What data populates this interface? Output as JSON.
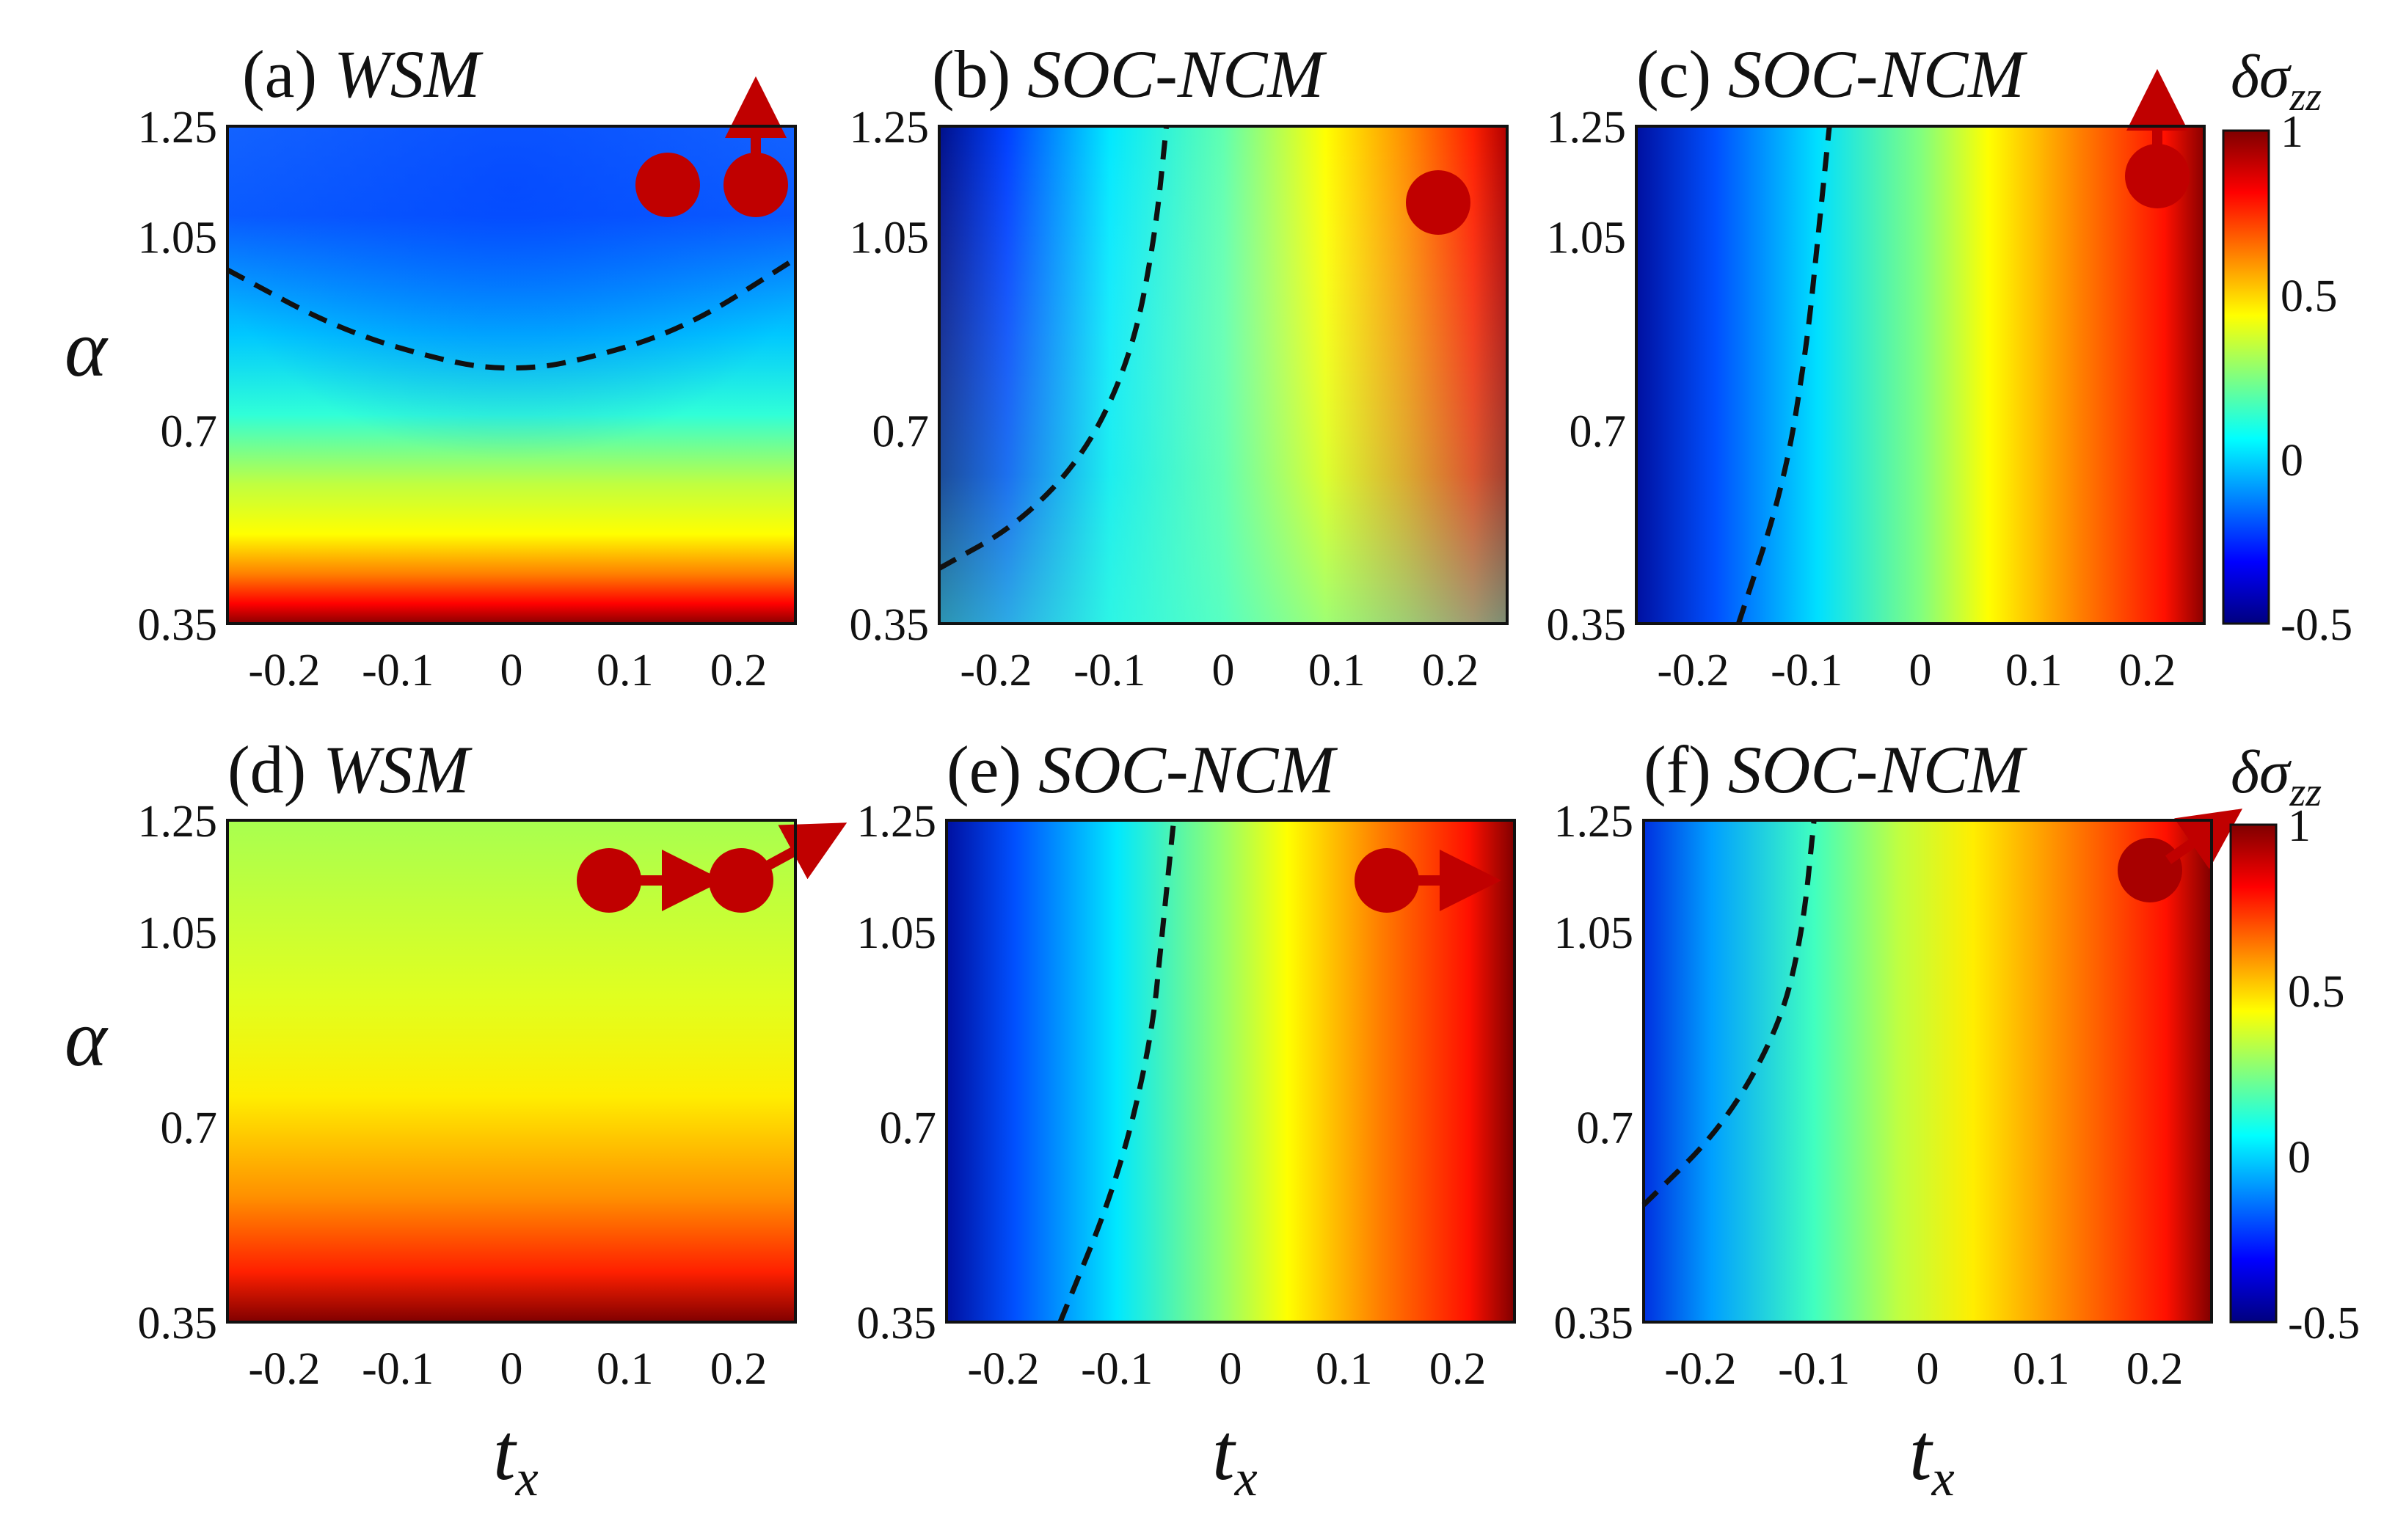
{
  "figure": {
    "y_axis_var": "α",
    "x_axis_var_base": "t",
    "x_axis_var_sub": "x",
    "colorbar_title": "δσ",
    "colorbar_subscript": "zz"
  },
  "chart_data": [
    {
      "id": "a",
      "type": "heatmap",
      "label": "(a)",
      "name": "WSM",
      "xlim": [
        -0.25,
        0.25
      ],
      "ylim": [
        0.35,
        1.25
      ],
      "x_ticks": [
        "-0.2",
        "-0.1",
        "0",
        "0.1",
        "0.2"
      ],
      "y_ticks": [
        "0.35",
        "0.7",
        "1.05",
        "1.25"
      ],
      "dashed_contour": [
        [
          -0.25,
          0.99
        ],
        [
          -0.15,
          0.88
        ],
        [
          -0.05,
          0.82
        ],
        [
          0,
          0.81
        ],
        [
          0.05,
          0.82
        ],
        [
          0.15,
          0.88
        ],
        [
          0.25,
          1.01
        ]
      ],
      "inset": "two red spheres, right one with upward arrow"
    },
    {
      "id": "b",
      "type": "heatmap",
      "label": "(b)",
      "name": "SOC-NCM",
      "xlim": [
        -0.25,
        0.25
      ],
      "ylim": [
        0.35,
        1.25
      ],
      "x_ticks": [
        "-0.2",
        "-0.1",
        "0",
        "0.1",
        "0.2"
      ],
      "y_ticks": [
        "0.35",
        "0.7",
        "1.05",
        "1.25"
      ],
      "dashed_contour": [
        [
          -0.25,
          0.45
        ],
        [
          -0.18,
          0.53
        ],
        [
          -0.12,
          0.66
        ],
        [
          -0.08,
          0.84
        ],
        [
          -0.06,
          1.05
        ],
        [
          -0.05,
          1.25
        ]
      ],
      "inset": "single red sphere"
    },
    {
      "id": "c",
      "type": "heatmap",
      "label": "(c)",
      "name": "SOC-NCM",
      "xlim": [
        -0.25,
        0.25
      ],
      "ylim": [
        0.35,
        1.25
      ],
      "x_ticks": [
        "-0.2",
        "-0.1",
        "0",
        "0.1",
        "0.2"
      ],
      "y_ticks": [
        "0.35",
        "0.7",
        "1.05",
        "1.25"
      ],
      "dashed_contour": [
        [
          -0.16,
          0.35
        ],
        [
          -0.12,
          0.6
        ],
        [
          -0.1,
          0.85
        ],
        [
          -0.09,
          1.05
        ],
        [
          -0.08,
          1.25
        ]
      ],
      "inset": "single red sphere with upward arrow"
    },
    {
      "id": "d",
      "type": "heatmap",
      "label": "(d)",
      "name": "WSM",
      "xlim": [
        -0.25,
        0.25
      ],
      "ylim": [
        0.35,
        1.25
      ],
      "x_ticks": [
        "-0.2",
        "-0.1",
        "0",
        "0.1",
        "0.2"
      ],
      "y_ticks": [
        "0.35",
        "0.7",
        "1.05",
        "1.25"
      ],
      "dashed_contour": [],
      "inset": "two red spheres with horizontal and diagonal arrows"
    },
    {
      "id": "e",
      "type": "heatmap",
      "label": "(e)",
      "name": "SOC-NCM",
      "xlim": [
        -0.25,
        0.25
      ],
      "ylim": [
        0.35,
        1.25
      ],
      "x_ticks": [
        "-0.2",
        "-0.1",
        "0",
        "0.1",
        "0.2"
      ],
      "y_ticks": [
        "0.35",
        "0.7",
        "1.05",
        "1.25"
      ],
      "dashed_contour": [
        [
          -0.15,
          0.35
        ],
        [
          -0.1,
          0.6
        ],
        [
          -0.07,
          0.85
        ],
        [
          -0.06,
          1.05
        ],
        [
          -0.05,
          1.25
        ]
      ],
      "inset": "single red sphere with horizontal arrow"
    },
    {
      "id": "f",
      "type": "heatmap",
      "label": "(f)",
      "name": "SOC-NCM",
      "xlim": [
        -0.25,
        0.25
      ],
      "ylim": [
        0.35,
        1.25
      ],
      "x_ticks": [
        "-0.2",
        "-0.1",
        "0",
        "0.1",
        "0.2"
      ],
      "y_ticks": [
        "0.35",
        "0.7",
        "1.05",
        "1.25"
      ],
      "dashed_contour": [
        [
          -0.25,
          0.56
        ],
        [
          -0.18,
          0.7
        ],
        [
          -0.13,
          0.88
        ],
        [
          -0.11,
          1.05
        ],
        [
          -0.1,
          1.25
        ]
      ],
      "inset": "single red sphere with diagonal arrow"
    }
  ],
  "colorbars": [
    {
      "id": "cb-top",
      "range": [
        -0.5,
        1
      ],
      "ticks": [
        "1",
        "0.5",
        "0",
        "-0.5"
      ]
    },
    {
      "id": "cb-bottom",
      "range": [
        -0.5,
        1
      ],
      "ticks": [
        "1",
        "0.5",
        "0",
        "-0.5"
      ]
    }
  ],
  "colors": {
    "jet": [
      "#00007f",
      "#0000ff",
      "#0080ff",
      "#00ffff",
      "#80ff80",
      "#ffff00",
      "#ff8000",
      "#ff0000",
      "#7f0000"
    ],
    "marker": "#c00000",
    "frame": "#111111",
    "dash": "#111111"
  }
}
